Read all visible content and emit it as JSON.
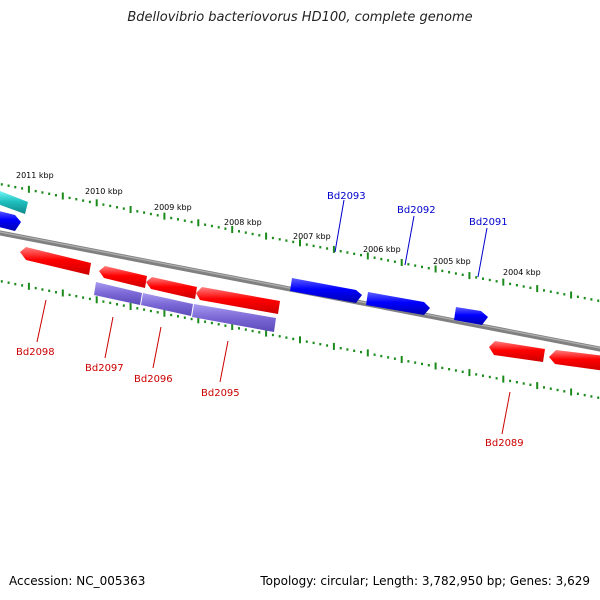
{
  "title": "Bdellovibrio bacteriovorus HD100, complete genome",
  "footer": {
    "accession": "Accession: NC_005363",
    "summary": "Topology: circular; Length: 3,782,950 bp; Genes: 3,629"
  },
  "ruler": {
    "ticks": [
      "2011 kbp",
      "2010 kbp",
      "2009 kbp",
      "2008 kbp",
      "2007 kbp",
      "2006 kbp",
      "2005 kbp",
      "2004 kbp"
    ],
    "color": "#1a8a1a"
  },
  "colors": {
    "backbone": "#808080",
    "forward_gene": "#0000ff",
    "reverse_gene": "#ff0000",
    "operon_block": "#7b68d6",
    "partial_feature": "#20c0c0",
    "forward_label": "#0000cc",
    "reverse_label": "#cc0000"
  },
  "genes": {
    "forward": [
      {
        "id": "Bd2093"
      },
      {
        "id": "Bd2092"
      },
      {
        "id": "Bd2091"
      }
    ],
    "reverse": [
      {
        "id": "Bd2098"
      },
      {
        "id": "Bd2097"
      },
      {
        "id": "Bd2096"
      },
      {
        "id": "Bd2095"
      },
      {
        "id": "Bd2089"
      }
    ]
  }
}
